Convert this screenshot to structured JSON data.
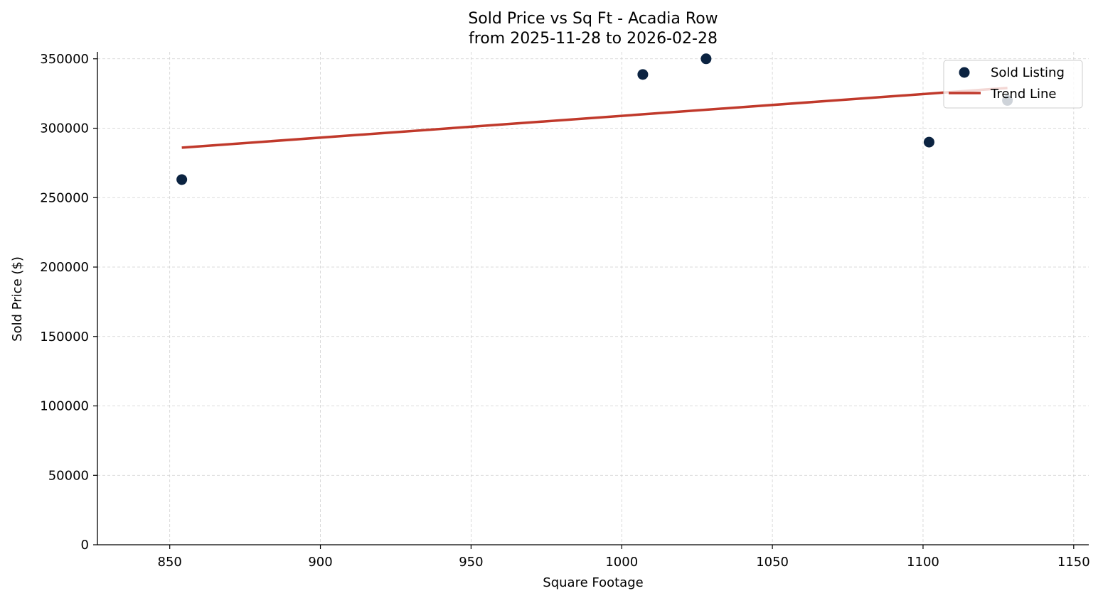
{
  "chart_data": {
    "type": "scatter",
    "title": "Sold Price vs Sq Ft - Acadia Row",
    "subtitle": "from 2025-11-28 to 2026-02-28",
    "xlabel": "Square Footage",
    "ylabel": "Sold Price ($)",
    "xlim": [
      826,
      1155
    ],
    "ylim": [
      0,
      355000
    ],
    "xticks": [
      850,
      900,
      950,
      1000,
      1050,
      1100,
      1150
    ],
    "yticks": [
      0,
      50000,
      100000,
      150000,
      200000,
      250000,
      300000,
      350000
    ],
    "grid": true,
    "legend_position": "top-right",
    "series": [
      {
        "name": "Sold Listing",
        "type": "scatter",
        "color": "#0b2341",
        "points": [
          {
            "x": 854,
            "y": 263000
          },
          {
            "x": 1007,
            "y": 338700
          },
          {
            "x": 1028,
            "y": 350000
          },
          {
            "x": 1102,
            "y": 290000
          },
          {
            "x": 1128,
            "y": 320000
          }
        ]
      },
      {
        "name": "Trend Line",
        "type": "line",
        "color": "#c0392b",
        "points": [
          {
            "x": 854,
            "y": 286000
          },
          {
            "x": 1128,
            "y": 329000
          }
        ]
      }
    ]
  }
}
